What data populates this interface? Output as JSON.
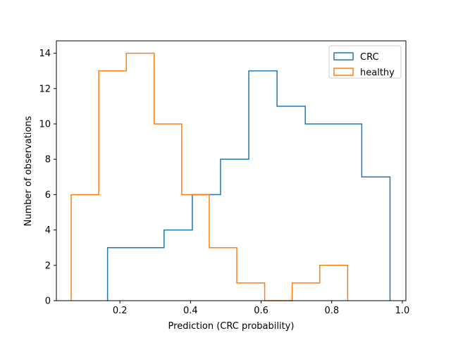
{
  "chart_data": {
    "type": "histogram",
    "xlabel": "Prediction (CRC probability)",
    "ylabel": "Number of observations",
    "xlim": [
      0.02,
      1.01
    ],
    "ylim": [
      0,
      14.7
    ],
    "xticks": [
      0.2,
      0.4,
      0.6,
      0.8,
      1.0
    ],
    "xtick_labels": [
      "0.2",
      "0.4",
      "0.6",
      "0.8",
      "1.0"
    ],
    "yticks": [
      0,
      2,
      4,
      6,
      8,
      10,
      12,
      14
    ],
    "ytick_labels": [
      "0",
      "2",
      "4",
      "6",
      "8",
      "10",
      "12",
      "14"
    ],
    "grid": false,
    "legend_position": "top-right",
    "series": [
      {
        "name": "CRC",
        "color": "#1f77b4",
        "bin_edges": [
          0.165,
          0.245,
          0.325,
          0.405,
          0.485,
          0.565,
          0.645,
          0.725,
          0.805,
          0.885,
          0.965
        ],
        "counts": [
          3,
          3,
          4,
          6,
          8,
          13,
          11,
          10,
          10,
          7
        ]
      },
      {
        "name": "healthy",
        "color": "#ff7f0e",
        "bin_edges": [
          0.062,
          0.14,
          0.218,
          0.297,
          0.375,
          0.453,
          0.531,
          0.61,
          0.688,
          0.766,
          0.845
        ],
        "counts": [
          6,
          13,
          14,
          10,
          6,
          3,
          1,
          0,
          1,
          2
        ]
      }
    ]
  }
}
